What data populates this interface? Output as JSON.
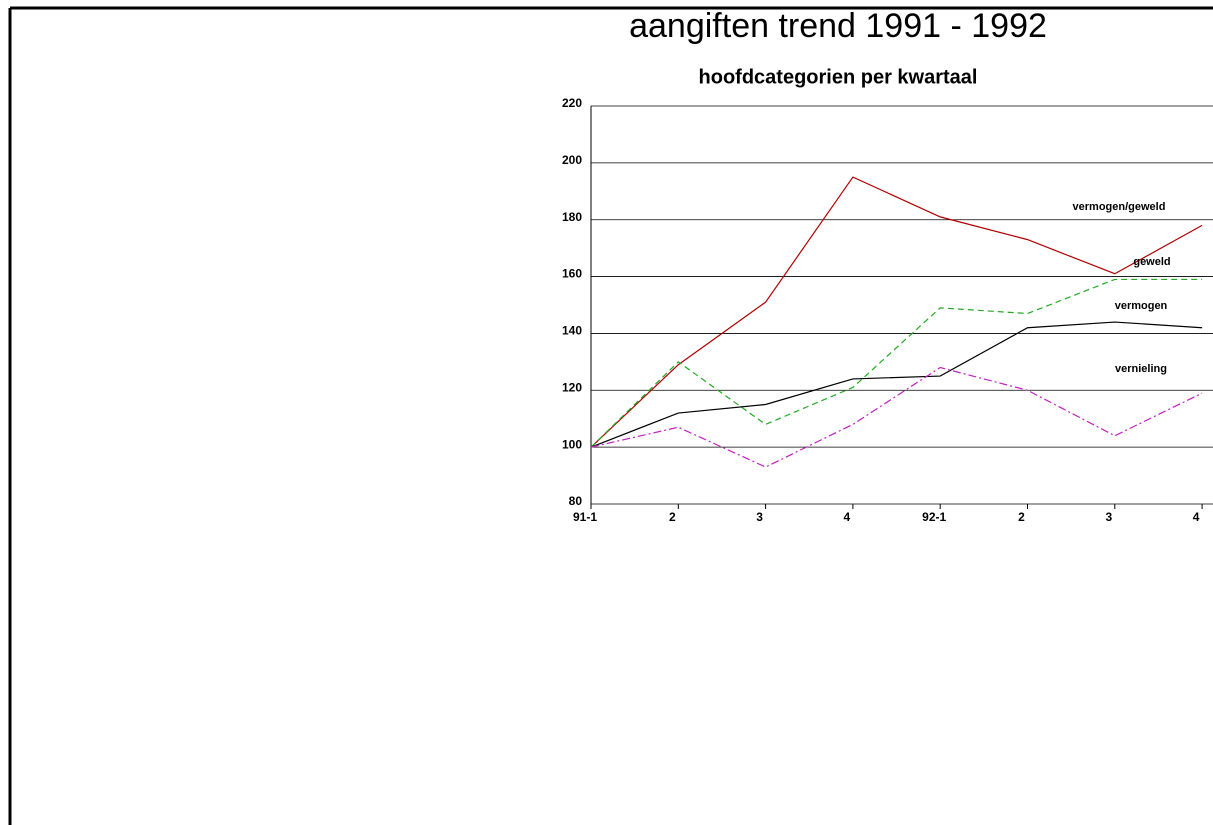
{
  "chart_data": {
    "type": "line",
    "title": "aangiften trend 1991 - 1992",
    "subtitle": "hoofdcategorien per kwartaal",
    "categories": [
      "91-1",
      "2",
      "3",
      "4",
      "92-1",
      "2",
      "3",
      "4"
    ],
    "series": [
      {
        "name": "vermogen/geweld",
        "color": "#b00000",
        "dash": "none",
        "values": [
          100,
          129,
          151,
          195,
          181,
          173,
          161,
          178
        ]
      },
      {
        "name": "geweld",
        "color": "#22aa22",
        "dash": "6,4",
        "values": [
          100,
          130,
          108,
          121,
          149,
          147,
          159,
          159
        ]
      },
      {
        "name": "vermogen",
        "color": "#000000",
        "dash": "none",
        "values": [
          100,
          112,
          115,
          124,
          125,
          142,
          144,
          142
        ]
      },
      {
        "name": "vernieling",
        "color": "#c020c0",
        "dash": "8,3,2,3",
        "values": [
          100,
          107,
          93,
          108,
          128,
          120,
          104,
          119
        ]
      }
    ],
    "ylim": [
      80,
      220
    ],
    "yticks": [
      80,
      100,
      120,
      140,
      160,
      180,
      200,
      220
    ],
    "grid": true
  }
}
